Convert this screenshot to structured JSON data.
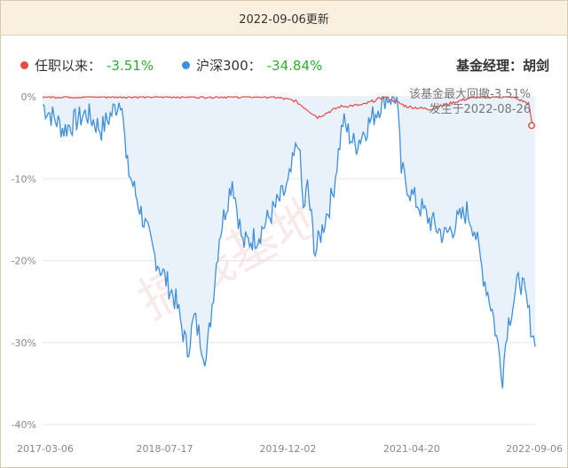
{
  "header": {
    "update_text": "2022-09-06更新"
  },
  "legend": {
    "fund_label": "任职以来：",
    "fund_value": "-3.51%",
    "index_label": "沪深300：",
    "index_value": "-34.84%",
    "manager_text": "基金经理：胡剑"
  },
  "annotation": {
    "line1": "该基金最大回撤-3.51%",
    "line2": "发生于2022-08-26"
  },
  "watermark": "搞钱基地",
  "colors": {
    "fund": "#e84a4a",
    "index": "#3d8fe0",
    "index_fill": "#e9f2fb",
    "value_green": "#2fae2f"
  },
  "chart_data": {
    "type": "line",
    "x_ticks": [
      "2017-03-06",
      "2018-07-17",
      "2019-12-02",
      "2021-04-20",
      "2022-09-06"
    ],
    "y_ticks": [
      "0%",
      "-10%",
      "-20%",
      "-30%",
      "-40%"
    ],
    "ylim": [
      -40,
      0
    ],
    "grid": true,
    "series": [
      {
        "name": "任职以来",
        "x": [
          "2017-03-06",
          "2019-10-01",
          "2020-01-01",
          "2020-04-01",
          "2020-07-01",
          "2020-10-01",
          "2021-01-01",
          "2021-04-01",
          "2021-07-01",
          "2022-01-01",
          "2022-06-01",
          "2022-08-10",
          "2022-08-26",
          "2022-09-06"
        ],
        "values": [
          0,
          0,
          -0.5,
          -2.5,
          -1.2,
          -1.0,
          0,
          -1.2,
          -1.5,
          0,
          0,
          -0.8,
          -3.51,
          -3.51
        ]
      },
      {
        "name": "沪深300",
        "x": [
          "2017-03-06",
          "2017-06-01",
          "2017-09-01",
          "2017-11-01",
          "2018-01-24",
          "2018-02-10",
          "2018-04-01",
          "2018-06-01",
          "2018-07-17",
          "2018-09-01",
          "2018-10-18",
          "2018-11-15",
          "2019-01-03",
          "2019-02-25",
          "2019-04-19",
          "2019-06-01",
          "2019-08-01",
          "2019-10-01",
          "2019-12-02",
          "2020-01-14",
          "2020-02-03",
          "2020-02-20",
          "2020-03-23",
          "2020-05-01",
          "2020-06-01",
          "2020-07-13",
          "2020-09-01",
          "2020-11-01",
          "2021-01-01",
          "2021-02-18",
          "2021-03-09",
          "2021-04-20",
          "2021-07-01",
          "2021-09-01",
          "2021-12-01",
          "2022-01-01",
          "2022-02-01",
          "2022-03-15",
          "2022-04-26",
          "2022-05-15",
          "2022-07-05",
          "2022-08-01",
          "2022-09-06"
        ],
        "values": [
          -1,
          -4,
          -2,
          -4,
          0,
          -8,
          -13,
          -19,
          -22,
          -25,
          -31,
          -27,
          -32,
          -17,
          -10,
          -18,
          -17,
          -14,
          -11,
          -5,
          -14,
          -11,
          -19,
          -15,
          -12,
          -3,
          -6,
          -3,
          0,
          0,
          -9,
          -12,
          -15,
          -17,
          -14,
          -16,
          -21,
          -26,
          -34,
          -28,
          -22,
          -25,
          -30.5
        ]
      }
    ]
  }
}
